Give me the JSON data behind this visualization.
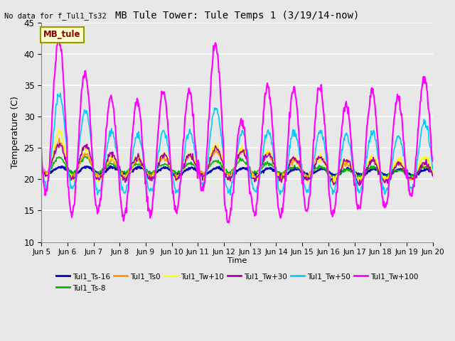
{
  "title": "MB Tule Tower: Tule Temps 1 (3/19/14-now)",
  "no_data_text": "No data for f_Tul1_Ts32",
  "xlabel": "Time",
  "ylabel": "Temperature (C)",
  "ylim": [
    10,
    45
  ],
  "yticks": [
    10,
    15,
    20,
    25,
    30,
    35,
    40,
    45
  ],
  "xlim": [
    0,
    15
  ],
  "xtick_labels": [
    "Jun 5",
    "Jun 6",
    "Jun 7",
    "Jun 8",
    "Jun 9",
    "Jun 10",
    "Jun 11",
    "Jun 12",
    "Jun 13",
    "Jun 14",
    "Jun 15",
    "Jun 16",
    "Jun 17",
    "Jun 18",
    "Jun 19",
    "Jun 20"
  ],
  "bg_color": "#e8e8e8",
  "plot_bg_color": "#e8e8e8",
  "legend_box_label": "MB_tule",
  "legend_box_color": "#ffffcc",
  "legend_box_border": "#999900",
  "series": [
    {
      "name": "Tul1_Ts-16",
      "color": "#0000bb",
      "lw": 1.8
    },
    {
      "name": "Tul1_Ts-8",
      "color": "#00bb00",
      "lw": 1.2
    },
    {
      "name": "Tul1_Ts0",
      "color": "#ff9900",
      "lw": 1.2
    },
    {
      "name": "Tul1_Tw+10",
      "color": "#ffff00",
      "lw": 1.2
    },
    {
      "name": "Tul1_Tw+30",
      "color": "#aa00aa",
      "lw": 1.2
    },
    {
      "name": "Tul1_Tw+50",
      "color": "#00ccff",
      "lw": 1.2
    },
    {
      "name": "Tul1_Tw+100",
      "color": "#ff00ff",
      "lw": 1.5
    }
  ],
  "figsize": [
    6.4,
    4.8
  ],
  "dpi": 100
}
